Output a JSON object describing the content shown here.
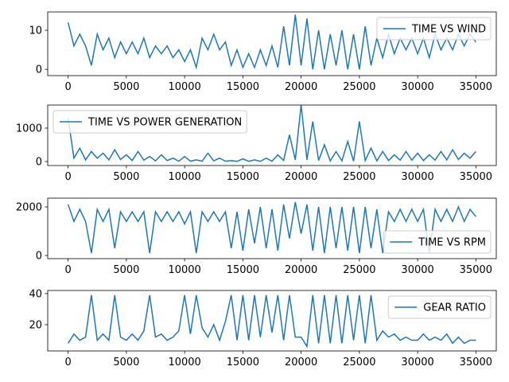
{
  "chart_data": [
    {
      "type": "line",
      "legend": "upper right",
      "xlim": [
        -1750,
        36750
      ],
      "xticks": [
        0,
        5000,
        10000,
        15000,
        20000,
        25000,
        30000,
        35000
      ],
      "ylim": [
        -1.6,
        14.7
      ],
      "yticks": [
        0,
        10
      ],
      "x": [
        0,
        500,
        1000,
        1500,
        2000,
        2500,
        3000,
        3500,
        4000,
        4500,
        5000,
        5500,
        6000,
        6500,
        7000,
        7500,
        8000,
        8500,
        9000,
        9500,
        10000,
        10500,
        11000,
        11500,
        12000,
        12500,
        13000,
        13500,
        14000,
        14500,
        15000,
        15500,
        16000,
        16500,
        17000,
        17500,
        18000,
        18500,
        19000,
        19500,
        20000,
        20500,
        21000,
        21500,
        22000,
        22500,
        23000,
        23500,
        24000,
        24500,
        25000,
        25500,
        26000,
        26500,
        27000,
        27500,
        28000,
        28500,
        29000,
        29500,
        30000,
        30500,
        31000,
        31500,
        32000,
        32500,
        33000,
        33500,
        34000,
        34500,
        35000
      ],
      "series": [
        {
          "name": "TIME VS WIND",
          "color": "#1f77b4",
          "values": [
            12,
            6,
            9,
            6,
            1,
            9,
            5,
            8,
            3,
            7,
            4,
            7,
            4,
            8,
            3,
            6,
            4,
            6,
            3,
            5,
            2,
            5,
            0.5,
            8,
            5,
            9,
            5,
            7,
            1,
            5,
            0.5,
            4,
            0.5,
            5,
            1,
            6,
            0.5,
            11,
            1,
            14,
            1,
            13,
            0,
            10,
            0,
            9,
            1,
            10,
            0,
            9,
            0,
            11,
            1,
            8,
            3,
            9,
            4,
            8,
            5,
            8,
            4,
            8,
            3,
            9,
            5,
            8,
            5,
            9,
            6,
            9,
            7
          ]
        }
      ]
    },
    {
      "type": "line",
      "legend": "upper left",
      "xlim": [
        -1750,
        36750
      ],
      "xticks": [
        0,
        5000,
        10000,
        15000,
        20000,
        25000,
        30000,
        35000
      ],
      "ylim": [
        -120,
        1690
      ],
      "yticks": [
        0,
        1000
      ],
      "x": [
        0,
        500,
        1000,
        1500,
        2000,
        2500,
        3000,
        3500,
        4000,
        4500,
        5000,
        5500,
        6000,
        6500,
        7000,
        7500,
        8000,
        8500,
        9000,
        9500,
        10000,
        10500,
        11000,
        11500,
        12000,
        12500,
        13000,
        13500,
        14000,
        14500,
        15000,
        15500,
        16000,
        16500,
        17000,
        17500,
        18000,
        18500,
        19000,
        19500,
        20000,
        20500,
        21000,
        21500,
        22000,
        22500,
        23000,
        23500,
        24000,
        24500,
        25000,
        25500,
        26000,
        26500,
        27000,
        27500,
        28000,
        28500,
        29000,
        29500,
        30000,
        30500,
        31000,
        31500,
        32000,
        32500,
        33000,
        33500,
        34000,
        34500,
        35000
      ],
      "series": [
        {
          "name": "TIME VS POWER GENERATION",
          "color": "#1f77b4",
          "values": [
            1300,
            100,
            400,
            50,
            300,
            100,
            250,
            50,
            350,
            60,
            200,
            30,
            300,
            40,
            150,
            20,
            200,
            30,
            100,
            10,
            150,
            10,
            50,
            10,
            250,
            20,
            100,
            10,
            30,
            5,
            80,
            5,
            50,
            5,
            100,
            10,
            200,
            30,
            800,
            50,
            1700,
            50,
            1200,
            30,
            500,
            20,
            300,
            20,
            600,
            10,
            1200,
            30,
            400,
            20,
            300,
            30,
            200,
            40,
            300,
            40,
            250,
            30,
            200,
            40,
            300,
            50,
            350,
            60,
            250,
            100,
            300
          ]
        }
      ]
    },
    {
      "type": "line",
      "legend": "lower right",
      "xlim": [
        -1750,
        36750
      ],
      "xticks": [
        0,
        5000,
        10000,
        15000,
        20000,
        25000,
        30000,
        35000
      ],
      "ylim": [
        -130,
        2360
      ],
      "yticks": [
        0,
        2000
      ],
      "x": [
        0,
        500,
        1000,
        1500,
        2000,
        2500,
        3000,
        3500,
        4000,
        4500,
        5000,
        5500,
        6000,
        6500,
        7000,
        7500,
        8000,
        8500,
        9000,
        9500,
        10000,
        10500,
        11000,
        11500,
        12000,
        12500,
        13000,
        13500,
        14000,
        14500,
        15000,
        15500,
        16000,
        16500,
        17000,
        17500,
        18000,
        18500,
        19000,
        19500,
        20000,
        20500,
        21000,
        21500,
        22000,
        22500,
        23000,
        23500,
        24000,
        24500,
        25000,
        25500,
        26000,
        26500,
        27000,
        27500,
        28000,
        28500,
        29000,
        29500,
        30000,
        30500,
        31000,
        31500,
        32000,
        32500,
        33000,
        33500,
        34000,
        34500,
        35000
      ],
      "series": [
        {
          "name": "TIME VS RPM",
          "color": "#1f77b4",
          "values": [
            2100,
            1400,
            1900,
            1400,
            100,
            1900,
            1400,
            1900,
            300,
            1800,
            1400,
            1800,
            1400,
            1800,
            100,
            1800,
            1400,
            1800,
            1400,
            1800,
            1300,
            1800,
            100,
            1800,
            1400,
            1800,
            1400,
            1800,
            300,
            1800,
            200,
            1900,
            500,
            2000,
            300,
            1900,
            200,
            2100,
            700,
            2200,
            900,
            2100,
            200,
            2000,
            100,
            2000,
            300,
            2000,
            200,
            2000,
            100,
            2000,
            300,
            1900,
            100,
            1800,
            1400,
            1900,
            1400,
            1900,
            1400,
            1900,
            100,
            1900,
            1400,
            1900,
            1400,
            2000,
            1400,
            1900,
            1600
          ]
        }
      ]
    },
    {
      "type": "line",
      "legend": "upper right",
      "xlim": [
        -1750,
        36750
      ],
      "xticks": [
        0,
        5000,
        10000,
        15000,
        20000,
        25000,
        30000,
        35000
      ],
      "ylim": [
        3.1,
        42
      ],
      "yticks": [
        20,
        40
      ],
      "x": [
        0,
        500,
        1000,
        1500,
        2000,
        2500,
        3000,
        3500,
        4000,
        4500,
        5000,
        5500,
        6000,
        6500,
        7000,
        7500,
        8000,
        8500,
        9000,
        9500,
        10000,
        10500,
        11000,
        11500,
        12000,
        12500,
        13000,
        13500,
        14000,
        14500,
        15000,
        15500,
        16000,
        16500,
        17000,
        17500,
        18000,
        18500,
        19000,
        19500,
        20000,
        20500,
        21000,
        21500,
        22000,
        22500,
        23000,
        23500,
        24000,
        24500,
        25000,
        25500,
        26000,
        26500,
        27000,
        27500,
        28000,
        28500,
        29000,
        29500,
        30000,
        30500,
        31000,
        31500,
        32000,
        32500,
        33000,
        33500,
        34000,
        34500,
        35000
      ],
      "series": [
        {
          "name": "GEAR RATIO",
          "color": "#1f77b4",
          "values": [
            8,
            14,
            10,
            12,
            39,
            10,
            14,
            10,
            39,
            12,
            10,
            14,
            10,
            16,
            39,
            12,
            14,
            10,
            12,
            16,
            39,
            14,
            39,
            18,
            12,
            20,
            10,
            22,
            39,
            10,
            39,
            10,
            39,
            12,
            39,
            15,
            39,
            10,
            39,
            12,
            12,
            6,
            39,
            8,
            39,
            8,
            39,
            8,
            39,
            10,
            39,
            8,
            39,
            10,
            16,
            12,
            14,
            10,
            12,
            10,
            10,
            14,
            10,
            12,
            10,
            14,
            8,
            12,
            8,
            10,
            10
          ]
        }
      ]
    }
  ]
}
